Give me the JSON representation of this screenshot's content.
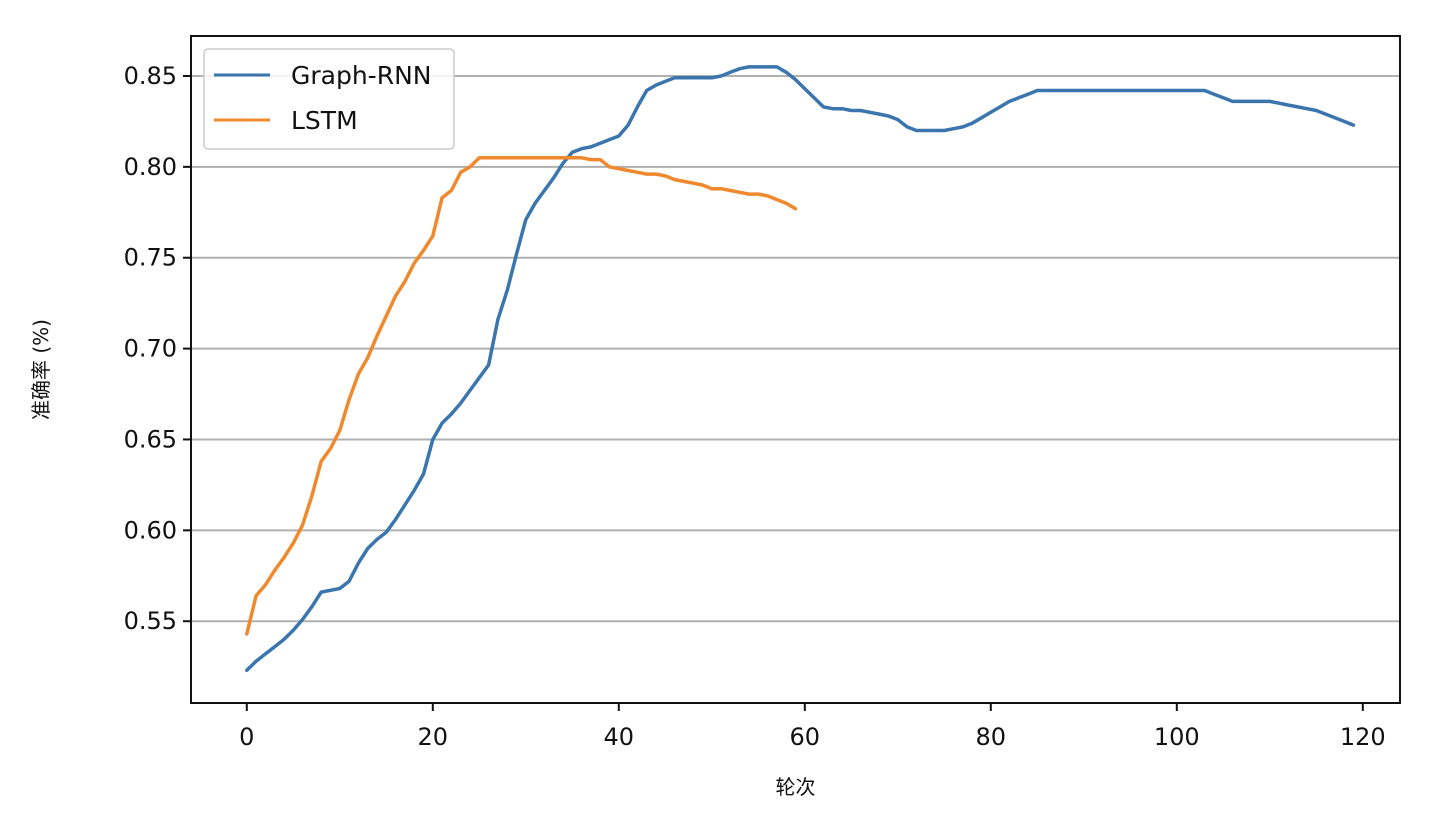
{
  "chart_data": {
    "type": "line",
    "xlabel": "轮次",
    "ylabel": "准确率 (%)",
    "xlim": [
      -6,
      124
    ],
    "ylim": [
      0.505,
      0.872
    ],
    "xticks": [
      "0",
      "20",
      "40",
      "60",
      "80",
      "100",
      "120"
    ],
    "yticks": [
      "0.55",
      "0.60",
      "0.65",
      "0.70",
      "0.75",
      "0.80",
      "0.85"
    ],
    "grid": "horizontal",
    "legend_position": "top-left",
    "series": [
      {
        "name": "Graph-RNN",
        "color": "#3a75ae",
        "x": [
          0,
          1,
          2,
          3,
          4,
          5,
          6,
          7,
          8,
          9,
          10,
          11,
          12,
          13,
          14,
          15,
          16,
          17,
          18,
          19,
          20,
          21,
          22,
          23,
          24,
          25,
          26,
          27,
          28,
          29,
          30,
          31,
          32,
          33,
          34,
          35,
          36,
          37,
          38,
          39,
          40,
          41,
          42,
          43,
          44,
          45,
          46,
          47,
          48,
          49,
          50,
          51,
          52,
          53,
          54,
          55,
          56,
          57,
          58,
          59,
          60,
          61,
          62,
          63,
          64,
          65,
          66,
          67,
          68,
          69,
          70,
          71,
          72,
          73,
          74,
          75,
          76,
          77,
          78,
          79,
          80,
          81,
          82,
          83,
          84,
          85,
          86,
          87,
          88,
          89,
          90,
          91,
          92,
          93,
          94,
          95,
          96,
          97,
          98,
          99,
          100,
          101,
          102,
          103,
          104,
          105,
          106,
          107,
          108,
          109,
          110,
          111,
          112,
          113,
          114,
          115,
          116,
          117,
          118,
          119
        ],
        "y": [
          0.523,
          0.528,
          0.532,
          0.536,
          0.54,
          0.545,
          0.551,
          0.558,
          0.566,
          0.567,
          0.568,
          0.572,
          0.582,
          0.59,
          0.595,
          0.599,
          0.606,
          0.614,
          0.622,
          0.631,
          0.65,
          0.659,
          0.664,
          0.67,
          0.677,
          0.684,
          0.691,
          0.716,
          0.732,
          0.752,
          0.771,
          0.78,
          0.787,
          0.794,
          0.802,
          0.808,
          0.81,
          0.811,
          0.813,
          0.815,
          0.817,
          0.823,
          0.833,
          0.842,
          0.845,
          0.847,
          0.849,
          0.849,
          0.849,
          0.849,
          0.849,
          0.85,
          0.852,
          0.854,
          0.855,
          0.855,
          0.855,
          0.855,
          0.852,
          0.848,
          0.843,
          0.838,
          0.833,
          0.832,
          0.832,
          0.831,
          0.831,
          0.83,
          0.829,
          0.828,
          0.826,
          0.822,
          0.82,
          0.82,
          0.82,
          0.82,
          0.821,
          0.822,
          0.824,
          0.827,
          0.83,
          0.833,
          0.836,
          0.838,
          0.84,
          0.842,
          0.842,
          0.842,
          0.842,
          0.842,
          0.842,
          0.842,
          0.842,
          0.842,
          0.842,
          0.842,
          0.842,
          0.842,
          0.842,
          0.842,
          0.842,
          0.842,
          0.842,
          0.842,
          0.84,
          0.838,
          0.836,
          0.836,
          0.836,
          0.836,
          0.836,
          0.835,
          0.834,
          0.833,
          0.832,
          0.831,
          0.829,
          0.827,
          0.825,
          0.823
        ]
      },
      {
        "name": "LSTM",
        "color": "#f0892e",
        "x": [
          0,
          1,
          2,
          3,
          4,
          5,
          6,
          7,
          8,
          9,
          10,
          11,
          12,
          13,
          14,
          15,
          16,
          17,
          18,
          19,
          20,
          21,
          22,
          23,
          24,
          25,
          26,
          27,
          28,
          29,
          30,
          31,
          32,
          33,
          34,
          35,
          36,
          37,
          38,
          39,
          40,
          41,
          42,
          43,
          44,
          45,
          46,
          47,
          48,
          49,
          50,
          51,
          52,
          53,
          54,
          55,
          56,
          57,
          58,
          59
        ],
        "y": [
          0.543,
          0.564,
          0.57,
          0.578,
          0.585,
          0.593,
          0.603,
          0.619,
          0.638,
          0.645,
          0.655,
          0.672,
          0.686,
          0.695,
          0.707,
          0.718,
          0.729,
          0.737,
          0.747,
          0.754,
          0.762,
          0.783,
          0.787,
          0.797,
          0.8,
          0.805,
          0.805,
          0.805,
          0.805,
          0.805,
          0.805,
          0.805,
          0.805,
          0.805,
          0.805,
          0.805,
          0.805,
          0.804,
          0.804,
          0.8,
          0.799,
          0.798,
          0.797,
          0.796,
          0.796,
          0.795,
          0.793,
          0.792,
          0.791,
          0.79,
          0.788,
          0.788,
          0.787,
          0.786,
          0.785,
          0.785,
          0.784,
          0.782,
          0.78,
          0.777
        ]
      }
    ]
  }
}
